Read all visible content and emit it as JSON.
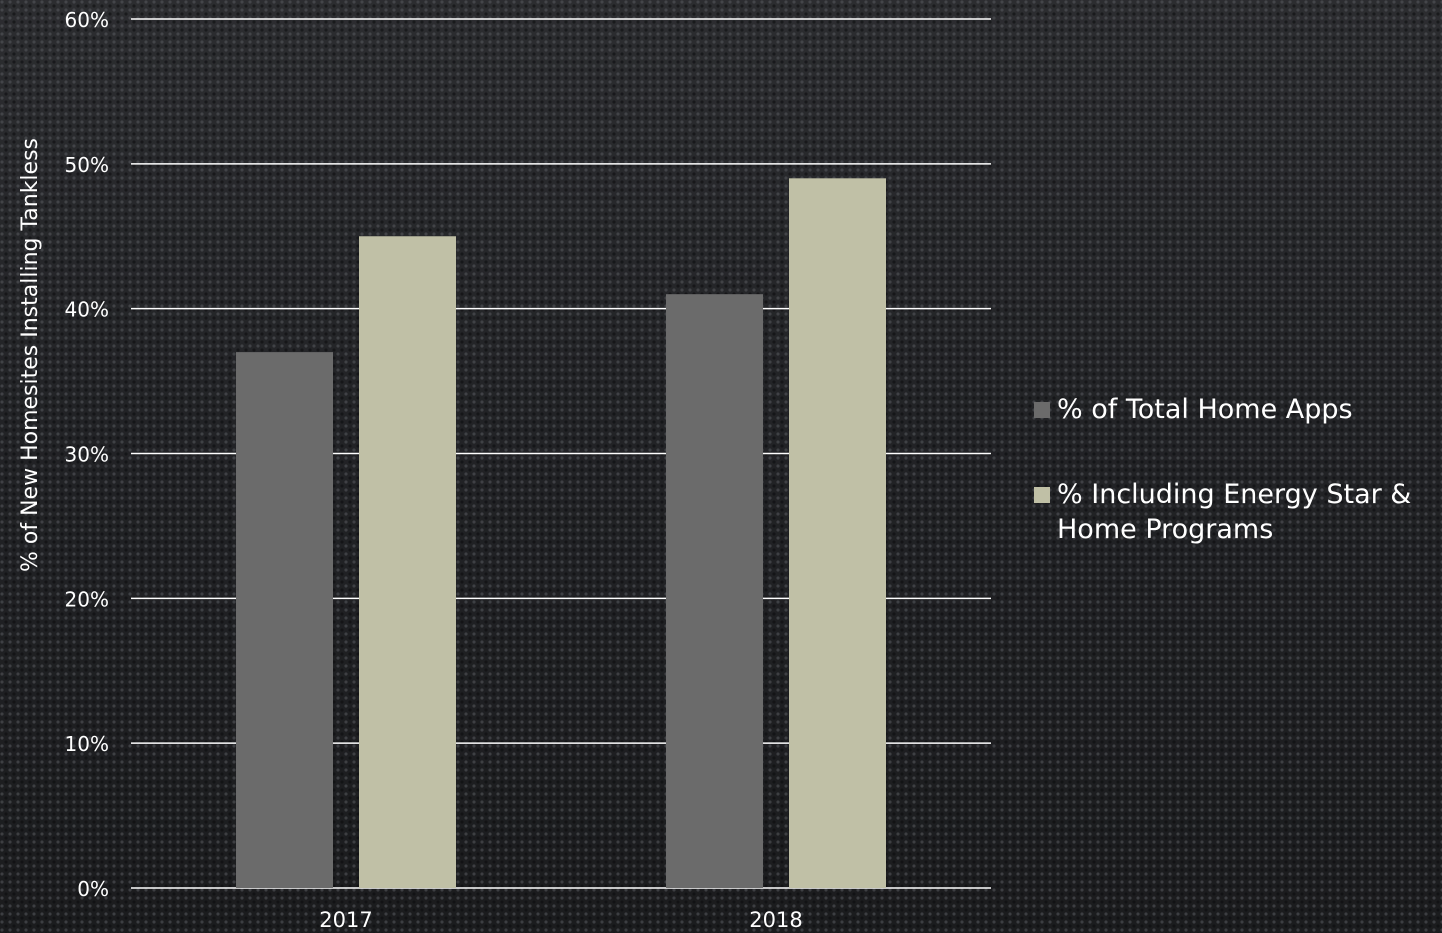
{
  "chart_data": {
    "type": "bar",
    "categories": [
      "2017",
      "2018"
    ],
    "series": [
      {
        "name": "% of Total Home Apps",
        "values": [
          37,
          41
        ],
        "color": "#6b6b6b"
      },
      {
        "name": "% Including Energy Star & Home Programs",
        "values": [
          45,
          49
        ],
        "color": "#c0c0a6"
      }
    ],
    "ylabel": "% of New Homesites Installing Tankless",
    "ylim": [
      0,
      60
    ],
    "yticks": [
      "0%",
      "10%",
      "20%",
      "30%",
      "40%",
      "50%",
      "60%"
    ],
    "grid": true,
    "legend_position": "right",
    "gridline_color": "#ffffff",
    "text_color": "#ffffff"
  }
}
